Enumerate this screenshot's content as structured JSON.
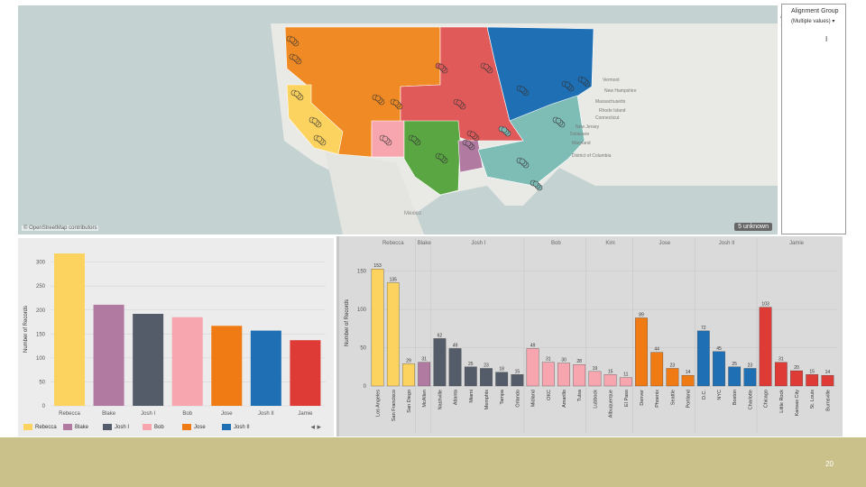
{
  "map": {
    "attribution": "© OpenStreetMap contributors",
    "unknown_badge": "5 unknown",
    "country_label": "Mexico",
    "labels": [
      "Vermont",
      "New Hampshire",
      "Massachusetts",
      "Rhode Island",
      "Connecticut",
      "New Jersey",
      "Delaware",
      "Maryland",
      "District of Columbia"
    ],
    "regions": [
      {
        "owner": "Jose",
        "color": "#f08a24"
      },
      {
        "owner": "Rebecca",
        "color": "#fcd35e"
      },
      {
        "owner": "Josh I",
        "color": "#e05a5a"
      },
      {
        "owner": "Bob",
        "color": "#f7a5ae"
      },
      {
        "owner": "Kim",
        "color": "#5aa643"
      },
      {
        "owner": "Blake",
        "color": "#b07aa1"
      },
      {
        "owner": "Josh II",
        "color": "#1f6fb4"
      },
      {
        "owner": "Jamie",
        "color": "#7ebcb6"
      }
    ]
  },
  "toolbar": {
    "icons": [
      "close-icon",
      "undo-icon",
      "move-icon",
      "filter-icon",
      "more-icon"
    ]
  },
  "filter_panel": {
    "title": "Alignment Group",
    "dropdown": "(Multiple values)"
  },
  "chart_data": [
    {
      "type": "bar",
      "title": "",
      "ylabel": "Number of Records",
      "xlabel": "",
      "categories": [
        "Rebecca",
        "Blake",
        "Josh I",
        "Bob",
        "Jose",
        "Josh II",
        "Jamie"
      ],
      "values": [
        318,
        211,
        192,
        185,
        167,
        157,
        137
      ],
      "colors": [
        "#fcd35e",
        "#b07aa1",
        "#555c69",
        "#f7a5ae",
        "#f07a14",
        "#1f6fb4",
        "#de3a36"
      ],
      "yticks": [
        0,
        50,
        100,
        150,
        200,
        250,
        300
      ],
      "ylim": [
        0,
        320
      ],
      "legend": [
        {
          "name": "Rebecca",
          "color": "#fcd35e"
        },
        {
          "name": "Blake",
          "color": "#b07aa1"
        },
        {
          "name": "Josh I",
          "color": "#555c69"
        },
        {
          "name": "Bob",
          "color": "#f7a5ae"
        },
        {
          "name": "Jose",
          "color": "#f07a14"
        },
        {
          "name": "Josh II",
          "color": "#1f6fb4"
        }
      ]
    },
    {
      "type": "bar",
      "title": "",
      "ylabel": "Number of Records",
      "xlabel": "",
      "yticks": [
        0,
        50,
        100,
        150
      ],
      "ylim": [
        0,
        165
      ],
      "groups": [
        {
          "name": "Rebecca",
          "color": "#fcd35e",
          "categories": [
            "Los Angeles",
            "San Francisco",
            "San Diego"
          ],
          "values": [
            153,
            135,
            29
          ]
        },
        {
          "name": "Blake",
          "color": "#b07aa1",
          "categories": [
            "McAllen"
          ],
          "values": [
            31
          ]
        },
        {
          "name": "Josh I",
          "color": "#555c69",
          "categories": [
            "Nashville",
            "Atlanta",
            "Miami",
            "Memphis",
            "Tampa",
            "Orlando"
          ],
          "values": [
            62,
            49,
            25,
            23,
            18,
            15
          ]
        },
        {
          "name": "Bob",
          "color": "#f7a5ae",
          "categories": [
            "Midland",
            "OKC",
            "Amarillo",
            "Tulsa"
          ],
          "values": [
            49,
            31,
            30,
            28
          ]
        },
        {
          "name": "Kim",
          "color": "#f7a5ae",
          "categories": [
            "Lubbock",
            "Albuquerque",
            "El Paso"
          ],
          "values": [
            19,
            15,
            11
          ]
        },
        {
          "name": "Jose",
          "color": "#f07a14",
          "categories": [
            "Denver",
            "Phoenix",
            "Seattle",
            "Portland"
          ],
          "values": [
            89,
            44,
            23,
            14
          ]
        },
        {
          "name": "Josh II",
          "color": "#1f6fb4",
          "categories": [
            "D.C.",
            "NYC",
            "Boston",
            "Charlotte"
          ],
          "values": [
            72,
            45,
            25,
            23
          ]
        },
        {
          "name": "Jamie",
          "color": "#de3a36",
          "categories": [
            "Chicago",
            "Little Rock",
            "Kansas City",
            "St. Louis",
            "Burnsville"
          ],
          "values": [
            103,
            31,
            20,
            15,
            14
          ]
        }
      ]
    }
  ],
  "footer": {
    "page_number": "20"
  }
}
